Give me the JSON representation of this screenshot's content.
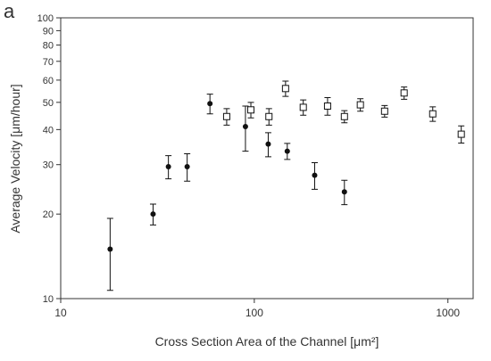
{
  "chart_data": {
    "type": "scatter",
    "panel_label": "a",
    "xlabel": "Cross Section Area of the Channel [μm²]",
    "ylabel": "Average Velocity [μm/hour]",
    "xscale": "log",
    "yscale": "log",
    "xlim": [
      10,
      1350
    ],
    "ylim": [
      10,
      100
    ],
    "xticks": [
      10,
      100,
      1000
    ],
    "yticks": [
      10,
      20,
      30,
      40,
      50,
      60,
      70,
      80,
      90,
      100
    ],
    "series": [
      {
        "marker": "circle",
        "color": "#111111",
        "x": [
          18,
          30,
          36,
          45,
          59,
          90,
          118,
          148,
          205,
          292
        ],
        "values": [
          15,
          20,
          29.5,
          29.5,
          49.5,
          41,
          35.5,
          33.5,
          27.5,
          24
        ],
        "errors": [
          4.3,
          1.7,
          2.8,
          3.3,
          4,
          7.5,
          3.5,
          2.2,
          3,
          2.4
        ]
      },
      {
        "marker": "square",
        "color": "#111111",
        "x": [
          72,
          96,
          119,
          145,
          179,
          239,
          292,
          353,
          471,
          594,
          835,
          1172
        ],
        "values": [
          44.5,
          47,
          44.5,
          56,
          48,
          48.5,
          44.5,
          49,
          46.5,
          54,
          45.5,
          38.5
        ],
        "errors": [
          3,
          3,
          3,
          3.5,
          3,
          3.5,
          2.2,
          2.5,
          2.2,
          2.7,
          2.7,
          2.7
        ]
      }
    ]
  }
}
